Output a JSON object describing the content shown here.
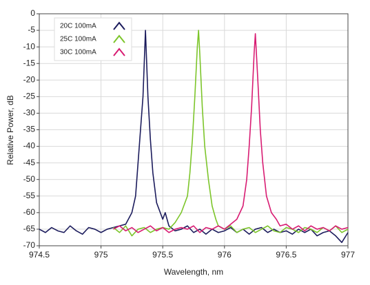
{
  "chart_data": {
    "type": "line",
    "x_label": "Wavelength, nm",
    "y_label": "Relative Power, dB",
    "xlim": [
      974.5,
      977
    ],
    "ylim": [
      -70,
      0
    ],
    "xticks": [
      974.5,
      975,
      975.5,
      976,
      976.5,
      977
    ],
    "yticks": [
      0,
      -5,
      -10,
      -15,
      -20,
      -25,
      -30,
      -35,
      -40,
      -45,
      -50,
      -55,
      -60,
      -65,
      -70
    ],
    "grid": true,
    "legend": "top-left",
    "series": [
      {
        "name": "20C 100mA",
        "color": "#1b1b5c",
        "x": [
          974.5,
          974.55,
          974.6,
          974.65,
          974.7,
          974.75,
          974.8,
          974.85,
          974.9,
          974.95,
          975.0,
          975.05,
          975.1,
          975.15,
          975.2,
          975.25,
          975.28,
          975.3,
          975.32,
          975.34,
          975.36,
          975.38,
          975.4,
          975.42,
          975.45,
          975.5,
          975.52,
          975.55,
          975.6,
          975.65,
          975.7,
          975.75,
          975.8,
          975.85,
          975.9,
          975.95,
          976.0,
          976.05,
          976.1,
          976.15,
          976.2,
          976.25,
          976.3,
          976.35,
          976.4,
          976.45,
          976.5,
          976.55,
          976.6,
          976.65,
          976.7,
          976.75,
          976.8,
          976.85,
          976.9,
          976.95,
          977.0
        ],
        "values": [
          -65,
          -66,
          -64.5,
          -65.5,
          -66,
          -64,
          -65.5,
          -66.5,
          -64.5,
          -65,
          -66,
          -65,
          -64.5,
          -64,
          -63.5,
          -60,
          -55,
          -45,
          -35,
          -25,
          -5,
          -25,
          -38,
          -48,
          -57,
          -62,
          -60,
          -64,
          -65.5,
          -65,
          -64,
          -66,
          -65,
          -66.5,
          -65,
          -66,
          -65.5,
          -64.5,
          -66,
          -65,
          -66.5,
          -65,
          -64.5,
          -66,
          -65,
          -66,
          -65.5,
          -66.5,
          -65,
          -66,
          -65,
          -67,
          -66,
          -65.5,
          -67,
          -69,
          -66
        ]
      },
      {
        "name": "25C 100mA",
        "color": "#7cc52a",
        "x": [
          975.1,
          975.15,
          975.2,
          975.25,
          975.3,
          975.35,
          975.4,
          975.45,
          975.5,
          975.55,
          975.6,
          975.65,
          975.7,
          975.72,
          975.74,
          975.76,
          975.78,
          975.79,
          975.8,
          975.82,
          975.84,
          975.87,
          975.9,
          975.93,
          975.95,
          976.0,
          976.05,
          976.1,
          976.15,
          976.2,
          976.25,
          976.3,
          976.35,
          976.4,
          976.45,
          976.5,
          976.55,
          976.6,
          976.65,
          976.7,
          976.75,
          976.8,
          976.85,
          976.9,
          976.95,
          977.0
        ],
        "values": [
          -64.5,
          -66,
          -64,
          -67,
          -65,
          -64.5,
          -66,
          -65,
          -64.5,
          -65,
          -63,
          -60,
          -55,
          -48,
          -38,
          -25,
          -10,
          -5,
          -12,
          -28,
          -40,
          -50,
          -58,
          -62,
          -64,
          -65,
          -64,
          -66,
          -65,
          -64.5,
          -66,
          -65,
          -64,
          -65.5,
          -66,
          -64.5,
          -65,
          -66,
          -64.5,
          -65,
          -66,
          -64.5,
          -65.5,
          -64,
          -66,
          -65
        ]
      },
      {
        "name": "30C 100mA",
        "color": "#d81b72",
        "x": [
          975.1,
          975.15,
          975.2,
          975.25,
          975.3,
          975.35,
          975.4,
          975.45,
          975.5,
          975.55,
          975.6,
          975.65,
          975.7,
          975.75,
          975.8,
          975.85,
          975.9,
          975.95,
          976.0,
          976.05,
          976.1,
          976.15,
          976.18,
          976.2,
          976.22,
          976.24,
          976.25,
          976.27,
          976.29,
          976.31,
          976.34,
          976.38,
          976.42,
          976.45,
          976.5,
          976.55,
          976.6,
          976.65,
          976.7,
          976.75,
          976.8,
          976.85,
          976.9,
          976.95,
          977.0
        ],
        "values": [
          -65,
          -64,
          -65.5,
          -64.5,
          -66,
          -65,
          -64,
          -65.5,
          -64.5,
          -66,
          -65,
          -64.5,
          -65,
          -64,
          -66,
          -64.5,
          -65,
          -64,
          -65,
          -63.5,
          -62,
          -58,
          -50,
          -40,
          -28,
          -12,
          -6,
          -20,
          -35,
          -45,
          -55,
          -60,
          -62,
          -64,
          -63.5,
          -65,
          -64,
          -65.5,
          -64,
          -65,
          -64.5,
          -65.5,
          -64,
          -65,
          -64.5
        ]
      }
    ]
  }
}
